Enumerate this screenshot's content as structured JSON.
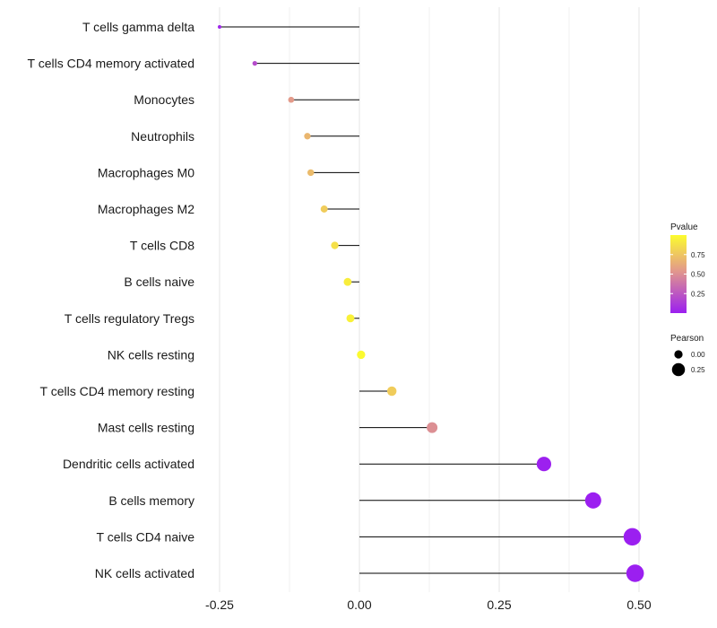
{
  "chart_data": {
    "type": "lollipop",
    "title": "",
    "xlabel": "",
    "ylabel": "",
    "xlim": [
      -0.27,
      0.53
    ],
    "x_ticks": [
      -0.25,
      0.0,
      0.25,
      0.5
    ],
    "x_tick_labels": [
      "-0.25",
      "0.00",
      "0.25",
      "0.50"
    ],
    "grid": true,
    "categories": [
      "T cells gamma delta",
      "T cells CD4 memory activated",
      "Monocytes",
      "Neutrophils",
      "Macrophages M0",
      "Macrophages M2",
      "T cells CD8",
      "B cells naive",
      "T cells regulatory  Tregs ",
      "NK cells resting",
      "T cells CD4 memory resting",
      "Mast cells resting",
      "Dendritic cells activated",
      "B cells memory",
      "T cells CD4 naive",
      "NK cells activated"
    ],
    "pearson": [
      -0.25,
      -0.187,
      -0.122,
      -0.093,
      -0.087,
      -0.063,
      -0.044,
      -0.021,
      -0.016,
      0.003,
      0.058,
      0.13,
      0.33,
      0.418,
      0.488,
      0.493
    ],
    "pvalue": [
      0.03,
      0.2,
      0.55,
      0.68,
      0.7,
      0.78,
      0.87,
      0.93,
      0.95,
      0.99,
      0.78,
      0.5,
      0.005,
      0.001,
      0.0005,
      0.0004
    ],
    "color_legend": {
      "title": "Pvalue",
      "ticks": [
        0.75,
        0.5,
        0.25
      ],
      "tick_labels": [
        "0.75",
        "0.50",
        "0.25"
      ],
      "low_color": "#9B1FF0",
      "mid_color": "#E39A8A",
      "high_color": "#FCFC2E",
      "range": [
        0.0,
        1.0
      ]
    },
    "size_legend": {
      "title": "Pearson",
      "values": [
        0.0,
        0.25
      ],
      "labels": [
        "0.00",
        "0.25"
      ]
    },
    "legend_position": "right"
  }
}
